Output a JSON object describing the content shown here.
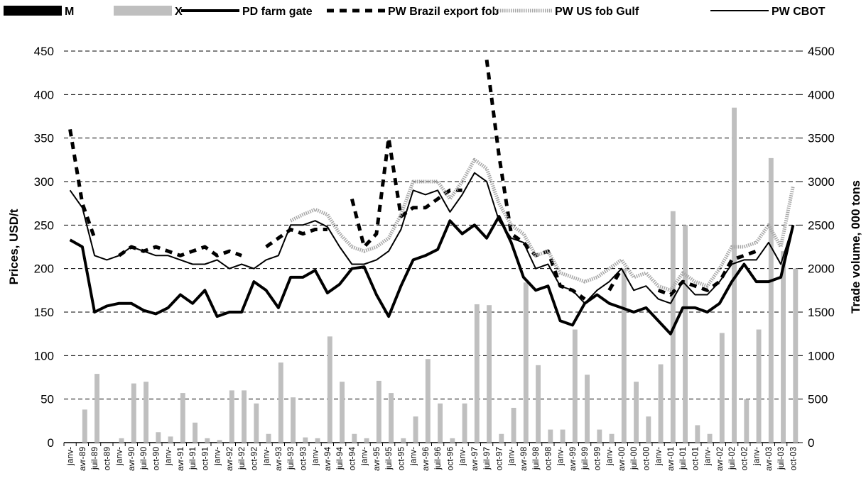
{
  "chart_data": {
    "type": "bar-line",
    "y_label": "Prices, USD/t",
    "y2_label": "Trade volume, 000 tons",
    "categories": [
      "janv-",
      "avr-89",
      "juil-89",
      "oct-89",
      "janv-",
      "avr-90",
      "juil-90",
      "oct-90",
      "janv-",
      "avr-91",
      "juil-91",
      "oct-91",
      "janv-",
      "avr-92",
      "juil-92",
      "oct-92",
      "janv-",
      "avr-93",
      "juil-93",
      "oct-93",
      "janv-",
      "avr-94",
      "juil-94",
      "oct-94",
      "janv-",
      "avr-95",
      "juil-95",
      "oct-95",
      "janv-",
      "avr-96",
      "juil-96",
      "oct-96",
      "janv-",
      "avr-97",
      "juil-97",
      "oct-97",
      "janv-",
      "avr-98",
      "juil-98",
      "oct-98",
      "janv-",
      "avr-99",
      "juil-99",
      "oct-99",
      "janv-",
      "avr-00",
      "juil-00",
      "oct-00",
      "janv-",
      "avr-01",
      "juil-01",
      "oct-01",
      "janv-",
      "avr-02",
      "juil-02",
      "oct-02",
      "janv-",
      "avr-03",
      "juil-03",
      "oct-03"
    ],
    "ylim": [
      0,
      450
    ],
    "yticks": [
      0,
      50,
      100,
      150,
      200,
      250,
      300,
      350,
      400,
      450
    ],
    "y2lim": [
      0,
      4500
    ],
    "y2ticks": [
      0,
      500,
      1000,
      1500,
      2000,
      2500,
      3000,
      3500,
      4000,
      4500
    ],
    "grid": true,
    "series": [
      {
        "name": "M",
        "style": "bar",
        "axis": "y2",
        "color": "#000000",
        "values": [
          0,
          0,
          0,
          0,
          0,
          0,
          0,
          0,
          0,
          0,
          0,
          0,
          0,
          0,
          0,
          0,
          0,
          0,
          0,
          0,
          0,
          0,
          0,
          0,
          0,
          0,
          0,
          0,
          0,
          0,
          0,
          0,
          0,
          0,
          0,
          0,
          0,
          0,
          0,
          0,
          0,
          0,
          0,
          0,
          0,
          0,
          0,
          0,
          0,
          0,
          0,
          0,
          0,
          0,
          0,
          0,
          0,
          0,
          0,
          0
        ]
      },
      {
        "name": "X",
        "style": "bar",
        "axis": "y2",
        "color": "#bfbfbf",
        "values": [
          0,
          380,
          790,
          0,
          50,
          680,
          700,
          120,
          70,
          570,
          230,
          50,
          30,
          600,
          600,
          450,
          100,
          920,
          520,
          60,
          50,
          1220,
          700,
          100,
          50,
          710,
          570,
          50,
          300,
          960,
          450,
          50,
          450,
          1590,
          1580,
          100,
          400,
          1840,
          890,
          150,
          150,
          1300,
          780,
          150,
          100,
          2000,
          700,
          300,
          900,
          2660,
          2500,
          200,
          100,
          1260,
          3850,
          500,
          1300,
          3270,
          2200,
          2000
        ]
      },
      {
        "name": "PD farm gate",
        "style": "solid",
        "width": 4,
        "color": "#000000",
        "values": [
          233,
          225,
          150,
          157,
          160,
          160,
          152,
          148,
          155,
          170,
          160,
          175,
          145,
          150,
          150,
          185,
          175,
          155,
          190,
          190,
          198,
          172,
          182,
          200,
          202,
          170,
          145,
          180,
          210,
          215,
          222,
          255,
          240,
          250,
          235,
          260,
          230,
          190,
          175,
          180,
          140,
          135,
          160,
          170,
          160,
          155,
          150,
          155,
          140,
          125,
          155,
          155,
          150,
          160,
          185,
          205,
          185,
          185,
          190,
          250
        ]
      },
      {
        "name": "PW Brazil export fob",
        "style": "dashed",
        "width": 5,
        "color": "#000000",
        "values": [
          360,
          275,
          235,
          null,
          215,
          225,
          220,
          225,
          220,
          215,
          220,
          225,
          215,
          220,
          215,
          null,
          225,
          235,
          245,
          240,
          245,
          245,
          null,
          280,
          225,
          240,
          350,
          260,
          270,
          270,
          280,
          290,
          290,
          null,
          440,
          330,
          240,
          230,
          215,
          220,
          180,
          175,
          165,
          null,
          175,
          200,
          null,
          null,
          175,
          170,
          185,
          180,
          175,
          185,
          210,
          215,
          220,
          null,
          null,
          null
        ]
      },
      {
        "name": "PW US fob Gulf",
        "style": "dotted",
        "width": 5,
        "color": "#a6a6a6",
        "values": [
          null,
          null,
          null,
          null,
          null,
          null,
          null,
          null,
          null,
          null,
          null,
          null,
          null,
          null,
          null,
          null,
          null,
          null,
          255,
          262,
          268,
          262,
          240,
          225,
          220,
          225,
          235,
          262,
          300,
          300,
          300,
          280,
          300,
          325,
          315,
          275,
          250,
          240,
          215,
          220,
          195,
          190,
          185,
          190,
          200,
          210,
          190,
          195,
          180,
          175,
          195,
          185,
          180,
          200,
          225,
          225,
          230,
          250,
          225,
          295
        ]
      },
      {
        "name": "PW CBOT",
        "style": "solid",
        "width": 2,
        "color": "#000000",
        "values": [
          290,
          270,
          215,
          210,
          215,
          225,
          220,
          215,
          215,
          210,
          205,
          205,
          210,
          200,
          205,
          200,
          210,
          215,
          250,
          250,
          255,
          248,
          225,
          205,
          205,
          210,
          220,
          245,
          290,
          285,
          290,
          265,
          285,
          310,
          300,
          255,
          235,
          230,
          200,
          205,
          180,
          175,
          160,
          175,
          185,
          200,
          175,
          180,
          165,
          160,
          185,
          170,
          170,
          185,
          205,
          210,
          210,
          230,
          205,
          250
        ]
      }
    ]
  }
}
